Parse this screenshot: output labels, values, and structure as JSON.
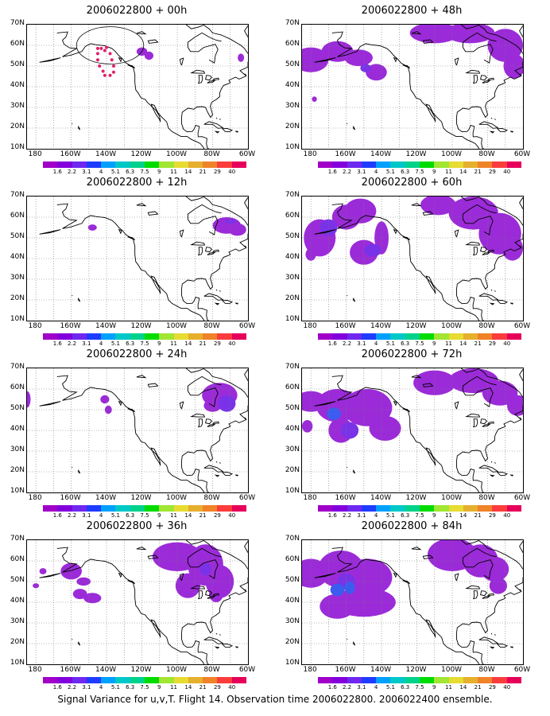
{
  "panels": [
    {
      "title": "2006022800 + 00h"
    },
    {
      "title": "2006022800 + 48h"
    },
    {
      "title": "2006022800 + 12h"
    },
    {
      "title": "2006022800 + 60h"
    },
    {
      "title": "2006022800 + 24h"
    },
    {
      "title": "2006022800 + 72h"
    },
    {
      "title": "2006022800 + 36h"
    },
    {
      "title": "2006022800 + 84h"
    }
  ],
  "lat_labels": [
    "70N",
    "60N",
    "50N",
    "40N",
    "30N",
    "20N",
    "10N"
  ],
  "lon_labels": [
    "180",
    "160W",
    "140W",
    "120W",
    "100W",
    "80W",
    "60W"
  ],
  "colorbar": {
    "labels": [
      "1.6",
      "2.2",
      "3.1",
      "4",
      "5.1",
      "6.3",
      "7.5",
      "9",
      "11",
      "14",
      "21",
      "29",
      "40"
    ],
    "colors": [
      "#a000c8",
      "#8200dc",
      "#6e28f0",
      "#1e3cff",
      "#00a0ff",
      "#00c8c8",
      "#00d28c",
      "#00dc00",
      "#a0e632",
      "#e6dc32",
      "#e6af2d",
      "#f08228",
      "#fa3c3c",
      "#e6005a"
    ]
  },
  "shading_color": "#9b2bd8",
  "shading_dark_color": "#7a32e8",
  "shading_blue_color": "#3c5cf0",
  "track_color": "#e0206a",
  "caption": "Signal Variance for u,v,T. Flight 14. Observation time 2006022800. 2006022400 ensemble."
}
